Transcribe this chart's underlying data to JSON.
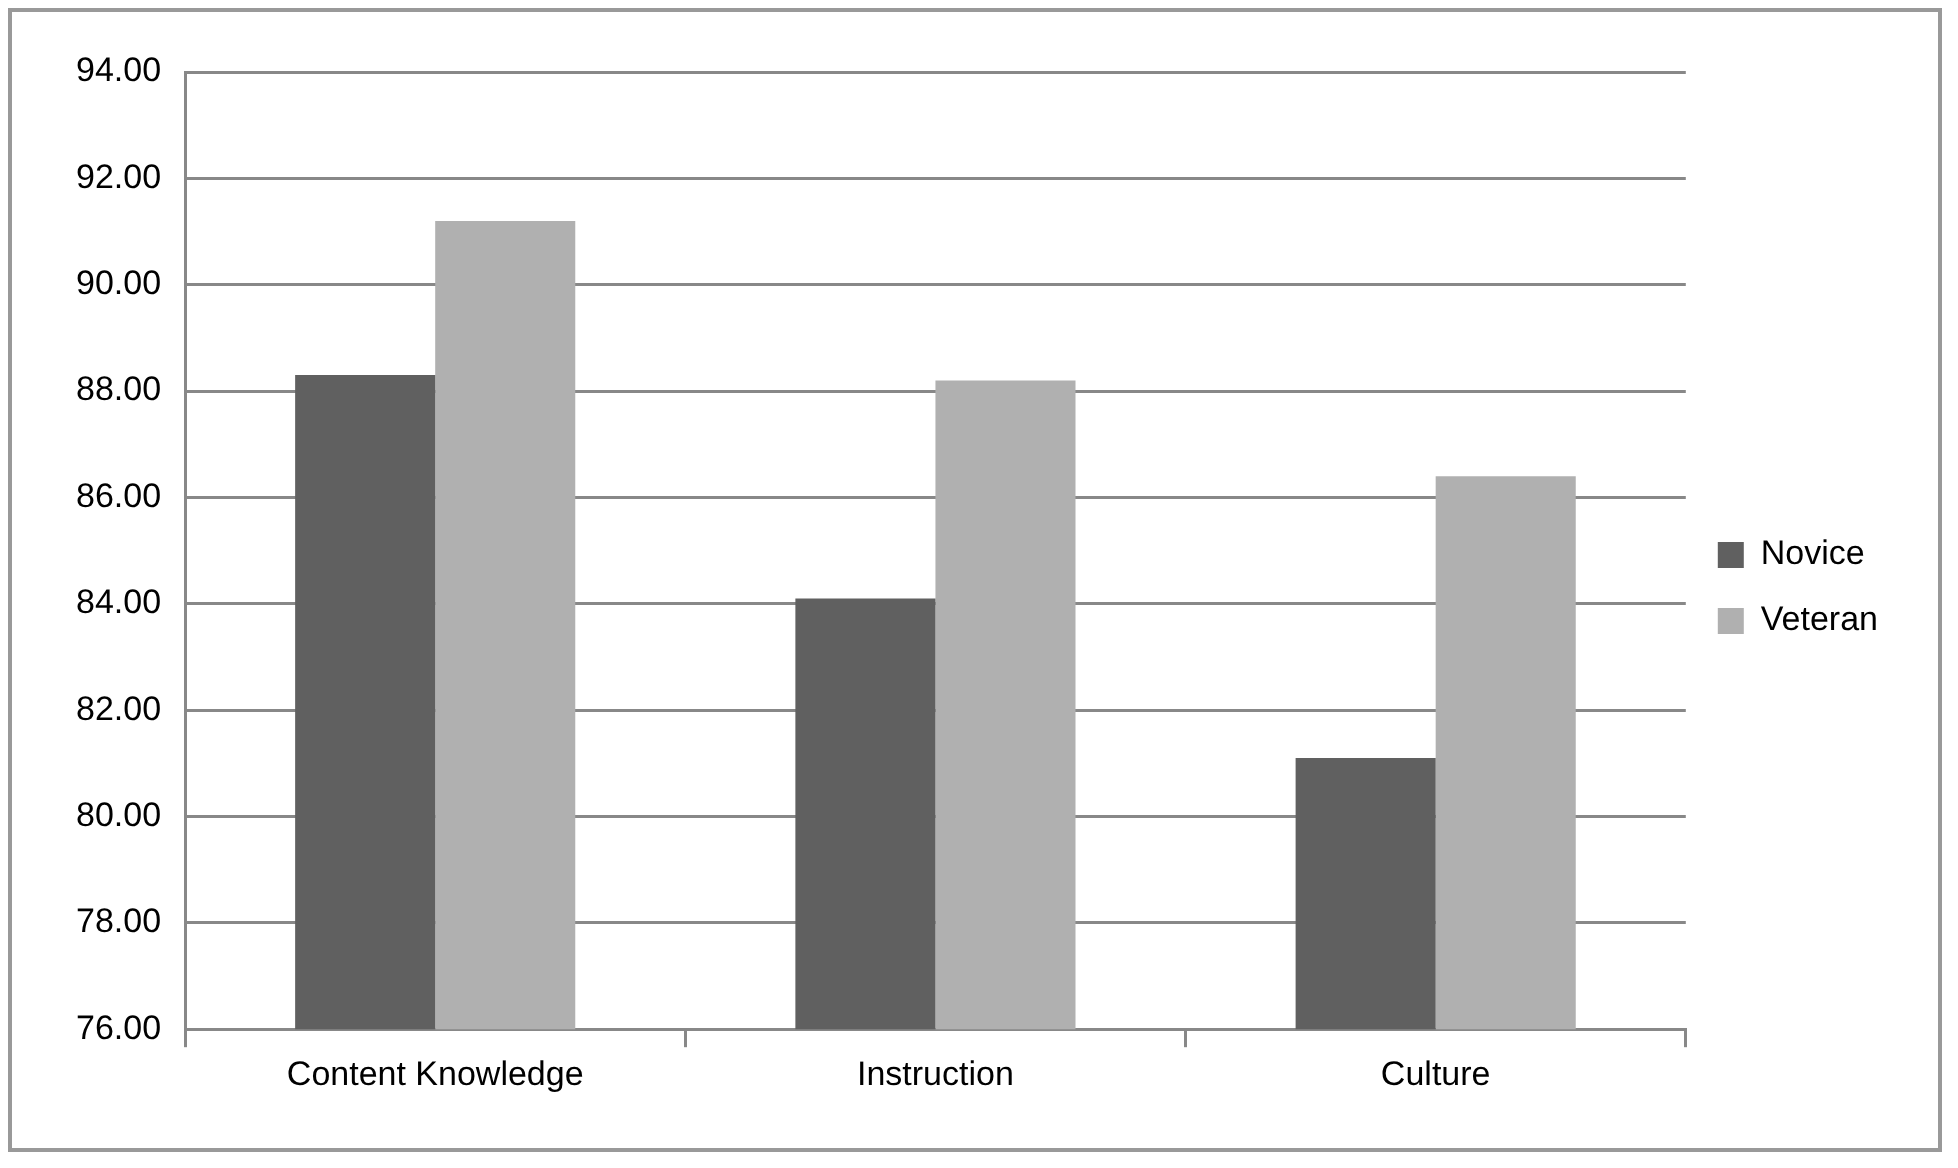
{
  "chart_data": {
    "type": "bar",
    "categories": [
      "Content Knowledge",
      "Instruction",
      "Culture"
    ],
    "series": [
      {
        "name": "Novice",
        "color": "#606060",
        "values": [
          88.3,
          84.1,
          81.1
        ]
      },
      {
        "name": "Veteran",
        "color": "#b0b0b0",
        "values": [
          91.2,
          88.2,
          86.4
        ]
      }
    ],
    "ylim": [
      76,
      94
    ],
    "yticks": [
      {
        "value": 76,
        "label": "76.00"
      },
      {
        "value": 78,
        "label": "78.00"
      },
      {
        "value": 80,
        "label": "80.00"
      },
      {
        "value": 82,
        "label": "82.00"
      },
      {
        "value": 84,
        "label": "84.00"
      },
      {
        "value": 86,
        "label": "86.00"
      },
      {
        "value": 88,
        "label": "88.00"
      },
      {
        "value": 90,
        "label": "90.00"
      },
      {
        "value": 92,
        "label": "92.00"
      },
      {
        "value": 94,
        "label": "94.00"
      }
    ],
    "grid": "y",
    "legend": "right"
  }
}
